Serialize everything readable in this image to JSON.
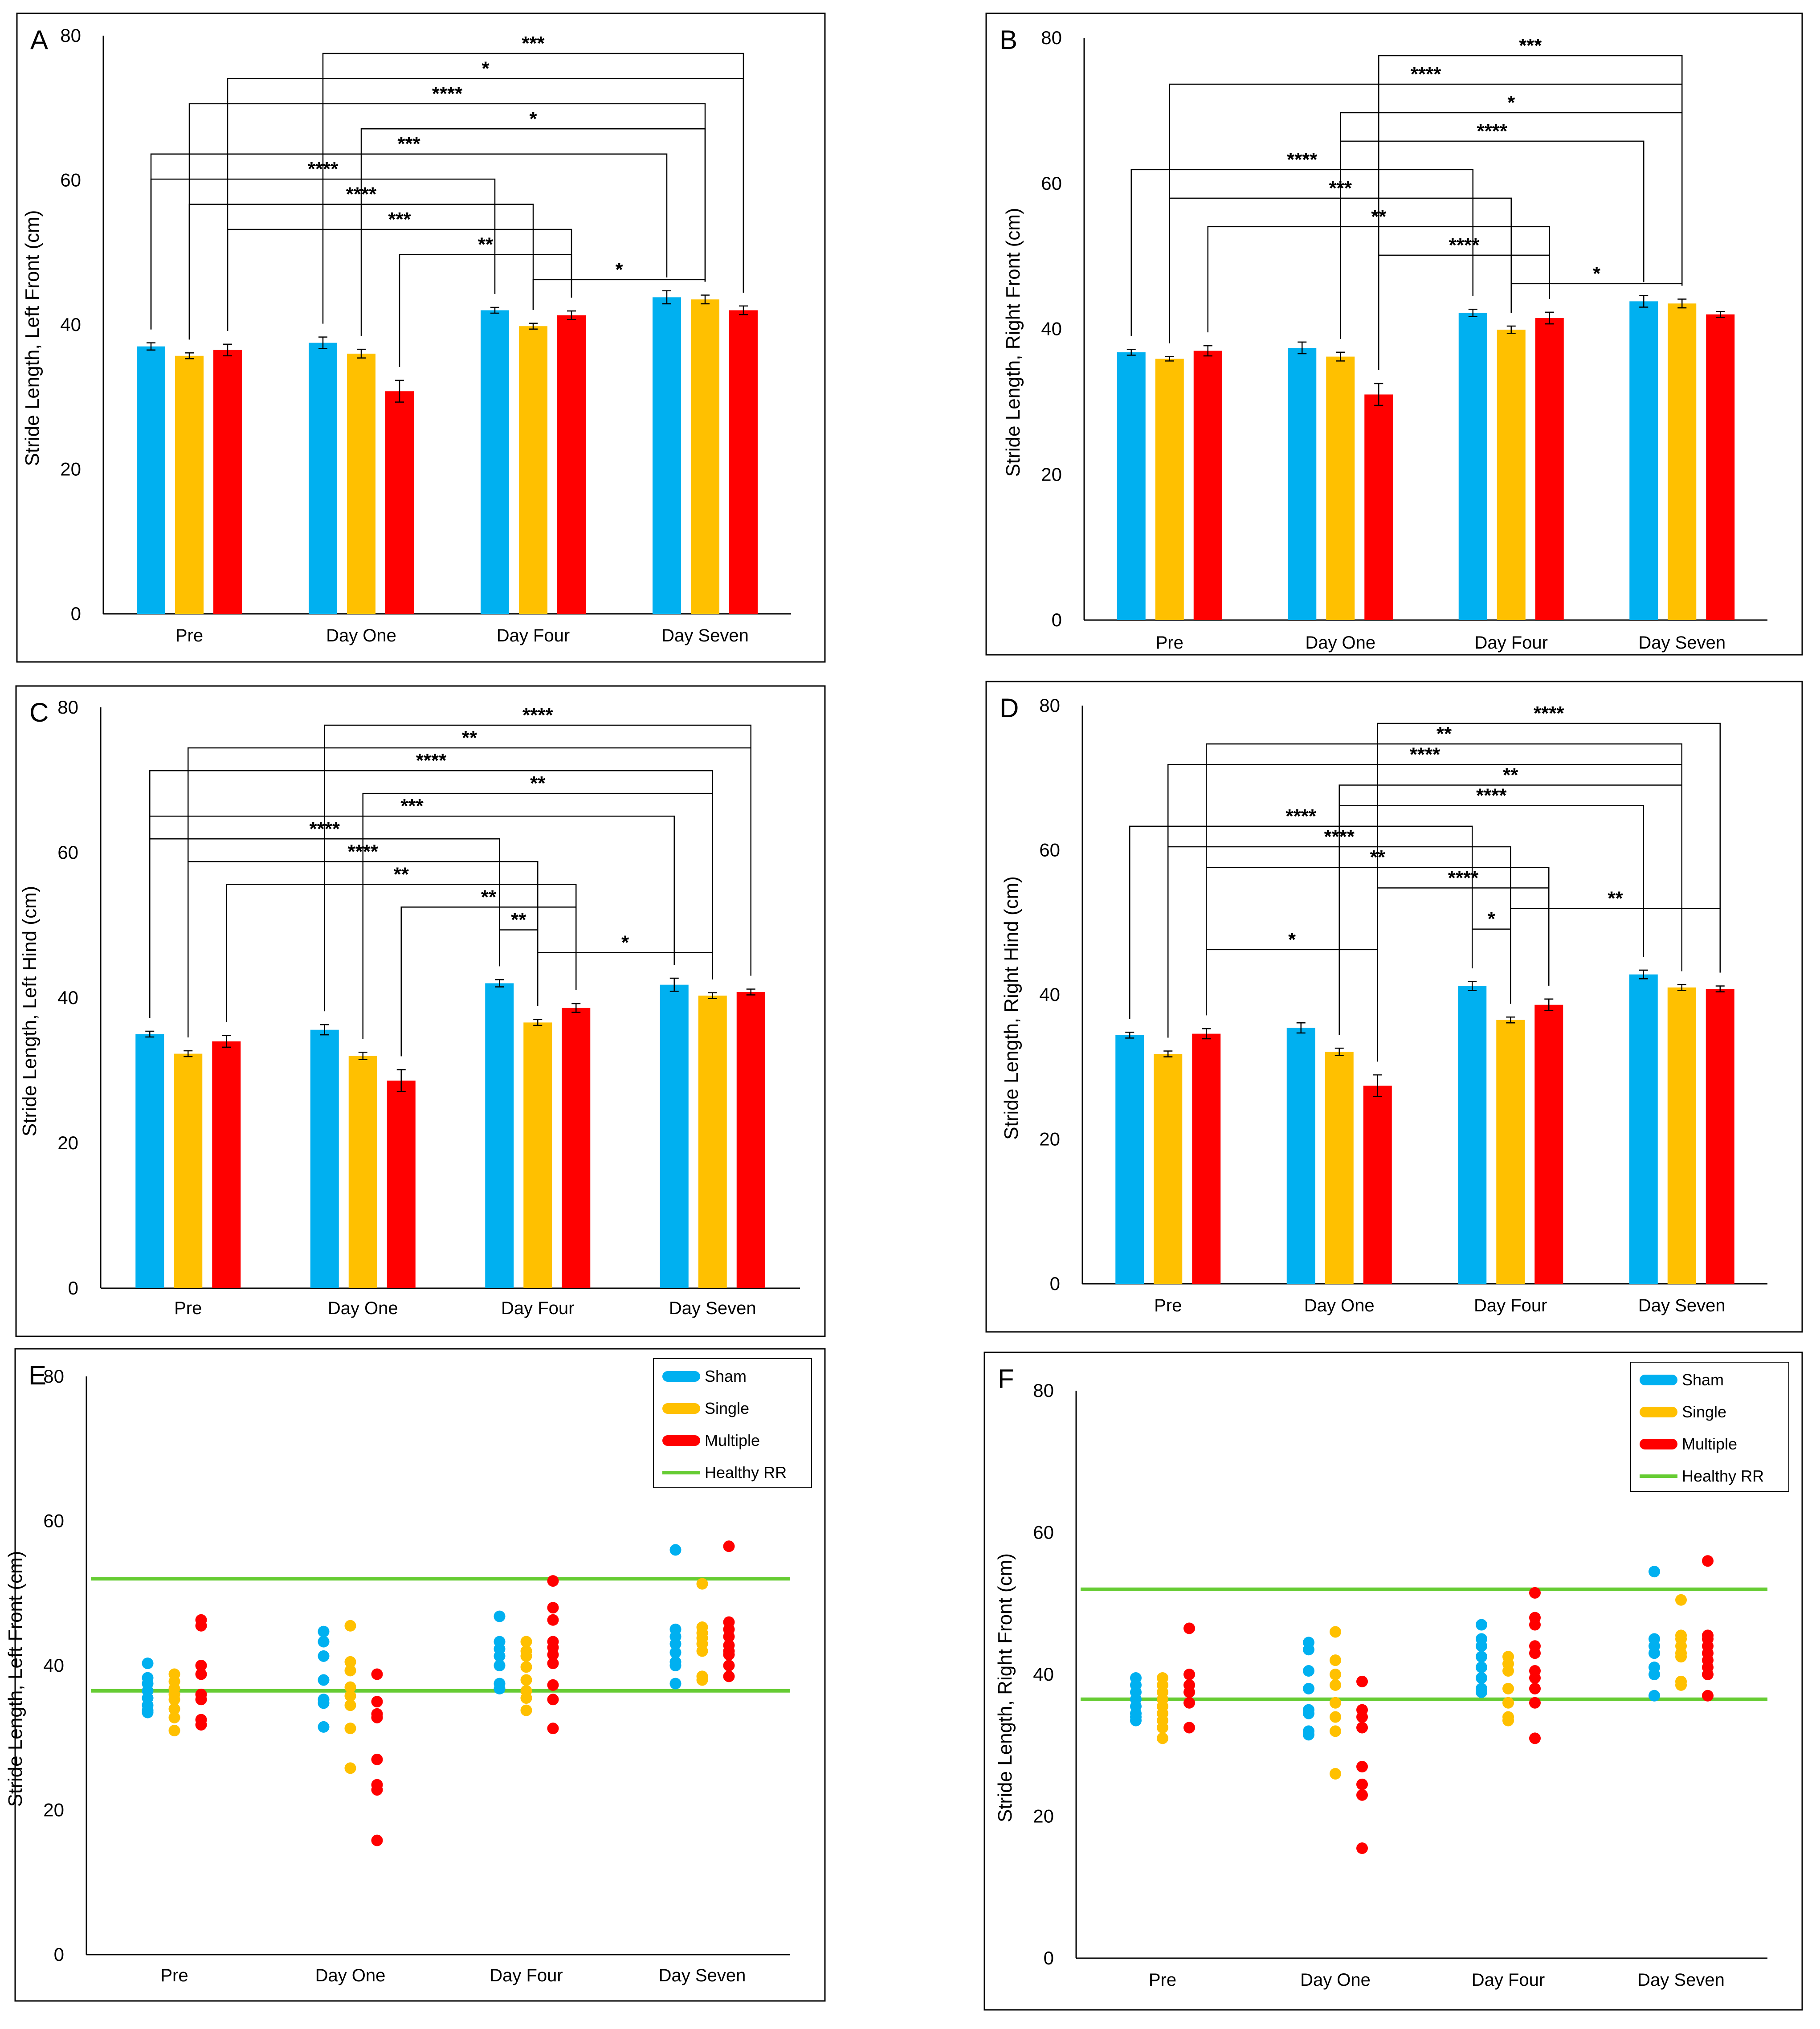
{
  "colors": {
    "Sham": "#00B0F0",
    "Single": "#FFC000",
    "Multiple": "#FF0000",
    "Healthy RR": "#66CC33"
  },
  "chart_data": [
    {
      "type": "bar",
      "panel": "A",
      "ylabel": "Stride Length, Left Front (cm)",
      "categories": [
        "Pre",
        "Day One",
        "Day Four",
        "Day Seven"
      ],
      "yticks": [
        "0",
        "20",
        "40",
        "60",
        "80"
      ],
      "ylim": [
        0,
        80
      ],
      "series": [
        {
          "key": "Sham",
          "values": [
            37.0,
            37.5,
            42.0,
            43.8
          ],
          "err": [
            0.5,
            0.8,
            0.4,
            0.9
          ]
        },
        {
          "key": "Single",
          "values": [
            35.7,
            36.0,
            39.8,
            43.5
          ],
          "err": [
            0.4,
            0.6,
            0.4,
            0.6
          ]
        },
        {
          "key": "Multiple",
          "values": [
            36.5,
            30.8,
            41.3,
            42.0
          ],
          "err": [
            0.8,
            1.5,
            0.6,
            0.6
          ]
        }
      ],
      "comparisons": [
        {
          "from": [
            1,
            0
          ],
          "to": [
            3,
            2
          ],
          "label": "***"
        },
        {
          "from": [
            0,
            2
          ],
          "to": [
            3,
            2
          ],
          "label": "*"
        },
        {
          "from": [
            0,
            1
          ],
          "to": [
            3,
            1
          ],
          "label": "****"
        },
        {
          "from": [
            1,
            1
          ],
          "to": [
            3,
            1
          ],
          "label": "*"
        },
        {
          "from": [
            0,
            0
          ],
          "to": [
            3,
            0
          ],
          "label": "***"
        },
        {
          "from": [
            0,
            0
          ],
          "to": [
            2,
            0
          ],
          "label": "****"
        },
        {
          "from": [
            0,
            1
          ],
          "to": [
            2,
            1
          ],
          "label": "****"
        },
        {
          "from": [
            0,
            2
          ],
          "to": [
            2,
            2
          ],
          "label": "***"
        },
        {
          "from": [
            1,
            2
          ],
          "to": [
            2,
            2
          ],
          "label": "**"
        },
        {
          "from": [
            2,
            1
          ],
          "to": [
            3,
            1
          ],
          "label": "*"
        }
      ]
    },
    {
      "type": "bar",
      "panel": "B",
      "ylabel": "Stride Length, Right Front (cm)",
      "categories": [
        "Pre",
        "Day One",
        "Day Four",
        "Day Seven"
      ],
      "yticks": [
        "0",
        "20",
        "40",
        "60",
        "80"
      ],
      "ylim": [
        0,
        80
      ],
      "series": [
        {
          "key": "Sham",
          "values": [
            36.8,
            37.4,
            42.2,
            43.8
          ],
          "err": [
            0.4,
            0.8,
            0.5,
            0.8
          ]
        },
        {
          "key": "Single",
          "values": [
            35.9,
            36.2,
            39.9,
            43.5
          ],
          "err": [
            0.3,
            0.6,
            0.5,
            0.6
          ]
        },
        {
          "key": "Multiple",
          "values": [
            37.0,
            31.0,
            41.5,
            42.0
          ],
          "err": [
            0.7,
            1.5,
            0.8,
            0.4
          ]
        }
      ],
      "comparisons": [
        {
          "from": [
            1,
            2
          ],
          "to": [
            3,
            1
          ],
          "label": "***"
        },
        {
          "from": [
            0,
            1
          ],
          "to": [
            3,
            1
          ],
          "label": "****"
        },
        {
          "from": [
            1,
            1
          ],
          "to": [
            3,
            1
          ],
          "label": "*"
        },
        {
          "from": [
            1,
            1
          ],
          "to": [
            3,
            0
          ],
          "label": "****"
        },
        {
          "from": [
            0,
            0
          ],
          "to": [
            2,
            0
          ],
          "label": "****"
        },
        {
          "from": [
            0,
            1
          ],
          "to": [
            2,
            1
          ],
          "label": "***"
        },
        {
          "from": [
            0,
            2
          ],
          "to": [
            2,
            2
          ],
          "label": "**"
        },
        {
          "from": [
            1,
            2
          ],
          "to": [
            2,
            2
          ],
          "label": "****"
        },
        {
          "from": [
            2,
            1
          ],
          "to": [
            3,
            1
          ],
          "label": "*"
        }
      ]
    },
    {
      "type": "bar",
      "panel": "C",
      "ylabel": "Stride Length, Left Hind (cm)",
      "categories": [
        "Pre",
        "Day One",
        "Day Four",
        "Day Seven"
      ],
      "yticks": [
        "0",
        "20",
        "40",
        "60",
        "80"
      ],
      "ylim": [
        0,
        80
      ],
      "series": [
        {
          "key": "Sham",
          "values": [
            35.0,
            35.6,
            42.0,
            41.8
          ],
          "err": [
            0.4,
            0.7,
            0.5,
            0.9
          ]
        },
        {
          "key": "Single",
          "values": [
            32.3,
            32.0,
            36.6,
            40.3
          ],
          "err": [
            0.4,
            0.5,
            0.4,
            0.4
          ]
        },
        {
          "key": "Multiple",
          "values": [
            34.0,
            28.6,
            38.6,
            40.8
          ],
          "err": [
            0.8,
            1.5,
            0.6,
            0.4
          ]
        }
      ],
      "comparisons": [
        {
          "from": [
            1,
            0
          ],
          "to": [
            3,
            2
          ],
          "label": "****"
        },
        {
          "from": [
            0,
            1
          ],
          "to": [
            3,
            2
          ],
          "label": "**"
        },
        {
          "from": [
            0,
            0
          ],
          "to": [
            3,
            1
          ],
          "label": "****"
        },
        {
          "from": [
            1,
            1
          ],
          "to": [
            3,
            1
          ],
          "label": "**"
        },
        {
          "from": [
            0,
            0
          ],
          "to": [
            3,
            0
          ],
          "label": "***"
        },
        {
          "from": [
            0,
            0
          ],
          "to": [
            2,
            0
          ],
          "label": "****"
        },
        {
          "from": [
            0,
            1
          ],
          "to": [
            2,
            1
          ],
          "label": "****"
        },
        {
          "from": [
            0,
            2
          ],
          "to": [
            2,
            2
          ],
          "label": "**"
        },
        {
          "from": [
            1,
            2
          ],
          "to": [
            2,
            2
          ],
          "label": "**"
        },
        {
          "from": [
            2,
            0
          ],
          "to": [
            2,
            1
          ],
          "label": "**"
        },
        {
          "from": [
            2,
            1
          ],
          "to": [
            3,
            1
          ],
          "label": "*"
        }
      ]
    },
    {
      "type": "bar",
      "panel": "D",
      "ylabel": "Stride Length, Right Hind (cm)",
      "categories": [
        "Pre",
        "Day One",
        "Day Four",
        "Day Seven"
      ],
      "yticks": [
        "0",
        "20",
        "40",
        "60",
        "80"
      ],
      "ylim": [
        0,
        80
      ],
      "series": [
        {
          "key": "Sham",
          "values": [
            34.4,
            35.4,
            41.2,
            42.8
          ],
          "err": [
            0.4,
            0.7,
            0.6,
            0.6
          ]
        },
        {
          "key": "Single",
          "values": [
            31.8,
            32.1,
            36.5,
            41.0
          ],
          "err": [
            0.4,
            0.5,
            0.4,
            0.4
          ]
        },
        {
          "key": "Multiple",
          "values": [
            34.6,
            27.4,
            38.6,
            40.8
          ],
          "err": [
            0.7,
            1.5,
            0.8,
            0.4
          ]
        }
      ],
      "comparisons": [
        {
          "from": [
            1,
            2
          ],
          "to": [
            3,
            2
          ],
          "label": "****"
        },
        {
          "from": [
            0,
            2
          ],
          "to": [
            3,
            1
          ],
          "label": "**"
        },
        {
          "from": [
            0,
            1
          ],
          "to": [
            3,
            1
          ],
          "label": "****"
        },
        {
          "from": [
            1,
            1
          ],
          "to": [
            3,
            1
          ],
          "label": "**"
        },
        {
          "from": [
            1,
            1
          ],
          "to": [
            3,
            0
          ],
          "label": "****"
        },
        {
          "from": [
            0,
            0
          ],
          "to": [
            2,
            0
          ],
          "label": "****"
        },
        {
          "from": [
            0,
            1
          ],
          "to": [
            2,
            1
          ],
          "label": "****"
        },
        {
          "from": [
            0,
            2
          ],
          "to": [
            2,
            2
          ],
          "label": "**"
        },
        {
          "from": [
            1,
            2
          ],
          "to": [
            2,
            2
          ],
          "label": "****"
        },
        {
          "from": [
            2,
            1
          ],
          "to": [
            3,
            2
          ],
          "label": "**"
        },
        {
          "from": [
            2,
            0
          ],
          "to": [
            2,
            1
          ],
          "label": "*"
        },
        {
          "from": [
            0,
            2
          ],
          "to": [
            1,
            2
          ],
          "label": "*"
        }
      ]
    },
    {
      "type": "scatter",
      "panel": "E",
      "ylabel": "Stride Length, Left Front (cm)",
      "categories": [
        "Pre",
        "Day One",
        "Day Four",
        "Day Seven"
      ],
      "yticks": [
        "0",
        "20",
        "40",
        "60",
        "80"
      ],
      "ylim": [
        0,
        80
      ],
      "reference_lines": [
        52,
        36.5
      ],
      "legend": [
        "Sham",
        "Single",
        "Multiple",
        "Healthy RR"
      ],
      "legend_position": "top-right",
      "series": [
        {
          "key": "Sham",
          "points": [
            [
              40.3,
              38.3,
              37.5,
              36.5,
              35.5,
              34.5,
              33.8,
              33.5
            ],
            [
              44.7,
              43.3,
              41.3,
              38.0,
              35.3,
              34.8,
              31.5
            ],
            [
              46.8,
              43.3,
              42.3,
              41.3,
              40.0,
              37.5,
              36.8
            ],
            [
              56.0,
              45.0,
              44.0,
              43.0,
              41.8,
              40.5,
              40.0,
              37.5
            ]
          ]
        },
        {
          "key": "Single",
          "points": [
            [
              38.8,
              37.8,
              36.8,
              36.0,
              35.3,
              34.0,
              32.8,
              31.0
            ],
            [
              45.5,
              40.5,
              39.3,
              37.0,
              35.8,
              34.5,
              31.3,
              25.8
            ],
            [
              43.3,
              42.0,
              41.3,
              39.8,
              38.0,
              36.5,
              35.5,
              33.8
            ],
            [
              51.3,
              45.3,
              44.5,
              43.8,
              43.0,
              42.0,
              38.5,
              38.0
            ]
          ]
        },
        {
          "key": "Multiple",
          "points": [
            [
              46.3,
              45.5,
              40.0,
              38.8,
              36.0,
              35.3,
              32.5,
              31.8
            ],
            [
              38.8,
              35.0,
              33.3,
              32.8,
              27.0,
              23.5,
              22.8,
              15.8
            ],
            [
              51.7,
              48.0,
              46.3,
              43.3,
              42.5,
              41.5,
              40.3,
              37.3,
              35.3,
              31.3
            ],
            [
              56.5,
              46.0,
              45.0,
              44.0,
              42.8,
              42.0,
              41.5,
              40.0,
              38.5
            ]
          ]
        }
      ]
    },
    {
      "type": "scatter",
      "panel": "F",
      "ylabel": "Stride Length, Right Front (cm)",
      "categories": [
        "Pre",
        "Day One",
        "Day Four",
        "Day Seven"
      ],
      "yticks": [
        "0",
        "20",
        "40",
        "60",
        "80"
      ],
      "ylim": [
        0,
        80
      ],
      "reference_lines": [
        52,
        36.5
      ],
      "legend": [
        "Sham",
        "Single",
        "Multiple",
        "Healthy RR"
      ],
      "legend_position": "top-right",
      "series": [
        {
          "key": "Sham",
          "points": [
            [
              39.5,
              38.5,
              37.5,
              36.5,
              35.5,
              34.5,
              34.0,
              33.5
            ],
            [
              44.5,
              43.5,
              40.5,
              38.0,
              35.0,
              34.5,
              32.0,
              31.5
            ],
            [
              47.0,
              45.0,
              44.0,
              42.5,
              41.0,
              39.5,
              38.0,
              37.5
            ],
            [
              54.5,
              45.0,
              44.0,
              43.0,
              41.0,
              40.0,
              37.0
            ]
          ]
        },
        {
          "key": "Single",
          "points": [
            [
              39.5,
              38.5,
              37.5,
              36.5,
              35.5,
              34.5,
              33.5,
              32.5,
              31.0
            ],
            [
              46.0,
              42.0,
              40.0,
              38.5,
              36.0,
              34.0,
              32.0,
              26.0
            ],
            [
              42.5,
              41.5,
              40.5,
              38.0,
              36.0,
              34.0,
              33.5
            ],
            [
              50.5,
              45.5,
              45.0,
              44.0,
              43.0,
              42.5,
              39.0,
              38.5
            ]
          ]
        },
        {
          "key": "Multiple",
          "points": [
            [
              46.5,
              40.0,
              38.5,
              37.5,
              36.0,
              32.5
            ],
            [
              39.0,
              35.0,
              34.0,
              32.5,
              27.0,
              24.5,
              23.0,
              15.5
            ],
            [
              51.5,
              48.0,
              47.0,
              44.0,
              43.0,
              40.5,
              39.5,
              38.0,
              36.0,
              31.0
            ],
            [
              56.0,
              45.5,
              45.0,
              44.0,
              43.0,
              42.0,
              41.0,
              40.0,
              37.0
            ]
          ]
        }
      ]
    }
  ]
}
